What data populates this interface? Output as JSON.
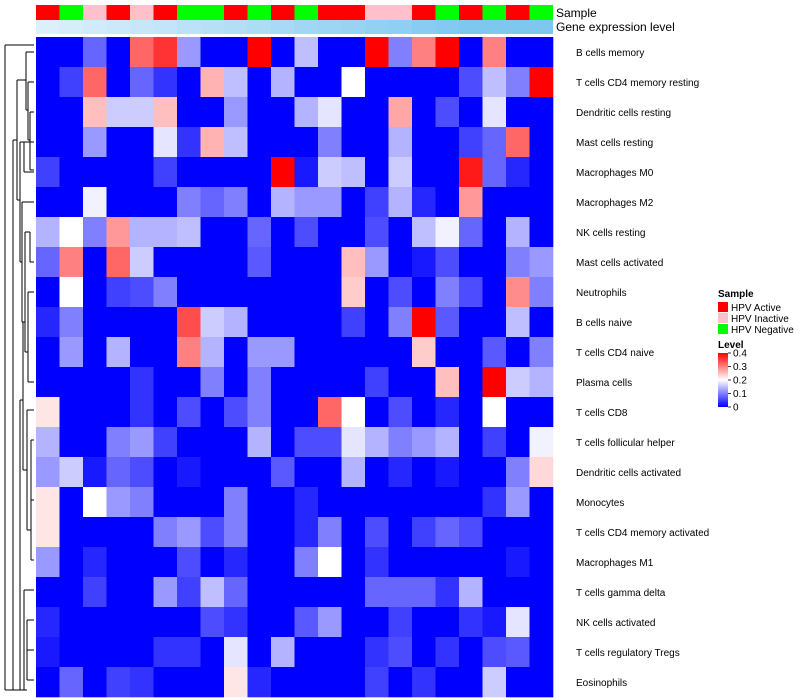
{
  "chart_data": {
    "type": "heatmap",
    "title": "",
    "annotation_rows": [
      "Sample",
      "Gene expression level"
    ],
    "sample_legend": {
      "title": "Sample",
      "entries": [
        {
          "label": "HPV Active",
          "color": "#ff0000"
        },
        {
          "label": "HPV Inactive",
          "color": "#ffc0cb"
        },
        {
          "label": "HPV Negative",
          "color": "#00ff00"
        }
      ]
    },
    "level_legend": {
      "title": "Level",
      "ticks": [
        "0.4",
        "0.3",
        "0.2",
        "0.1",
        "0"
      ],
      "tick_values": [
        0.4,
        0.3,
        0.2,
        0.1,
        0
      ],
      "range": [
        0,
        0.4
      ],
      "colors": {
        "low": "#0000ff",
        "mid": "#ffffff",
        "high": "#ff0000"
      }
    },
    "samples": [
      "HPV Active",
      "HPV Negative",
      "HPV Inactive",
      "HPV Active",
      "HPV Inactive",
      "HPV Active",
      "HPV Negative",
      "HPV Negative",
      "HPV Active",
      "HPV Negative",
      "HPV Active",
      "HPV Negative",
      "HPV Active",
      "HPV Active",
      "HPV Inactive",
      "HPV Inactive",
      "HPV Active",
      "HPV Negative",
      "HPV Active",
      "HPV Negative",
      "HPV Active",
      "HPV Negative"
    ],
    "gene_expression_level": [
      0.1,
      0.15,
      0.2,
      0.25,
      0.3,
      0.35,
      0.4,
      0.45,
      0.5,
      0.55,
      0.6,
      0.65,
      0.7,
      0.75,
      0.8,
      0.85,
      0.9,
      0.95,
      1.0,
      1.0,
      1.0,
      1.0
    ],
    "rows": [
      "B cells memory",
      "T cells CD4 memory resting",
      "Dendritic cells resting",
      "Mast cells resting",
      "Macrophages M0",
      "Macrophages M2",
      "NK cells resting",
      "Mast cells activated",
      "Neutrophils",
      "B cells naive",
      "T cells CD4 naive",
      "Plasma cells",
      "T cells CD8",
      "T cells follicular helper",
      "Dendritic cells activated",
      "Monocytes",
      "T cells CD4 memory activated",
      "Macrophages M1",
      "T cells gamma delta",
      "NK cells activated",
      "T cells regulatory  Tregs",
      "Eosinophils"
    ],
    "values": [
      [
        0.0,
        0.0,
        0.08,
        0.0,
        0.32,
        0.36,
        0.12,
        0.0,
        0.0,
        0.42,
        0.0,
        0.15,
        0.0,
        0.0,
        0.42,
        0.1,
        0.3,
        0.42,
        0.0,
        0.3,
        0.0,
        0.0
      ],
      [
        0.0,
        0.05,
        0.32,
        0.0,
        0.08,
        0.04,
        0.0,
        0.26,
        0.15,
        0.0,
        0.14,
        0.0,
        0.0,
        0.2,
        0.0,
        0.0,
        0.0,
        0.0,
        0.06,
        0.15,
        0.1,
        0.42
      ],
      [
        0.0,
        0.0,
        0.25,
        0.16,
        0.16,
        0.25,
        0.0,
        0.0,
        0.12,
        0.0,
        0.0,
        0.14,
        0.18,
        0.0,
        0.0,
        0.27,
        0.0,
        0.06,
        0.0,
        0.18,
        0.0,
        0.0
      ],
      [
        0.0,
        0.0,
        0.12,
        0.0,
        0.0,
        0.18,
        0.04,
        0.26,
        0.15,
        0.0,
        0.0,
        0.0,
        0.1,
        0.0,
        0.0,
        0.14,
        0.0,
        0.0,
        0.05,
        0.08,
        0.32,
        0.0
      ],
      [
        0.05,
        0.0,
        0.0,
        0.0,
        0.0,
        0.05,
        0.0,
        0.0,
        0.0,
        0.0,
        0.42,
        0.02,
        0.16,
        0.15,
        0.0,
        0.16,
        0.0,
        0.0,
        0.38,
        0.08,
        0.03,
        0.0
      ],
      [
        0.0,
        0.0,
        0.19,
        0.0,
        0.0,
        0.0,
        0.1,
        0.08,
        0.1,
        0.0,
        0.14,
        0.12,
        0.12,
        0.0,
        0.05,
        0.14,
        0.03,
        0.0,
        0.28,
        0.0,
        0.0,
        0.0
      ],
      [
        0.14,
        0.2,
        0.1,
        0.28,
        0.14,
        0.14,
        0.15,
        0.0,
        0.0,
        0.08,
        0.0,
        0.06,
        0.0,
        0.0,
        0.06,
        0.0,
        0.15,
        0.19,
        0.08,
        0.0,
        0.14,
        0.0
      ],
      [
        0.08,
        0.3,
        0.0,
        0.32,
        0.16,
        0.0,
        0.0,
        0.0,
        0.0,
        0.07,
        0.0,
        0.0,
        0.0,
        0.25,
        0.12,
        0.0,
        0.02,
        0.06,
        0.0,
        0.0,
        0.1,
        0.12
      ],
      [
        0.0,
        0.2,
        0.0,
        0.05,
        0.06,
        0.1,
        0.0,
        0.0,
        0.0,
        0.0,
        0.0,
        0.0,
        0.0,
        0.24,
        0.0,
        0.06,
        0.0,
        0.1,
        0.06,
        0.0,
        0.29,
        0.1
      ],
      [
        0.03,
        0.1,
        0.0,
        0.0,
        0.0,
        0.0,
        0.34,
        0.16,
        0.14,
        0.0,
        0.0,
        0.0,
        0.0,
        0.05,
        0.0,
        0.1,
        0.42,
        0.07,
        0.0,
        0.0,
        0.15,
        0.0
      ],
      [
        0.0,
        0.12,
        0.0,
        0.14,
        0.0,
        0.0,
        0.3,
        0.14,
        0.0,
        0.12,
        0.12,
        0.0,
        0.0,
        0.0,
        0.0,
        0.0,
        0.24,
        0.0,
        0.0,
        0.07,
        0.0,
        0.1
      ],
      [
        0.0,
        0.0,
        0.0,
        0.0,
        0.04,
        0.0,
        0.0,
        0.1,
        0.0,
        0.1,
        0.0,
        0.0,
        0.0,
        0.0,
        0.05,
        0.0,
        0.0,
        0.25,
        0.0,
        0.4,
        0.16,
        0.14
      ],
      [
        0.22,
        0.0,
        0.0,
        0.0,
        0.04,
        0.0,
        0.06,
        0.0,
        0.06,
        0.1,
        0.0,
        0.0,
        0.32,
        0.2,
        0.0,
        0.06,
        0.0,
        0.03,
        0.0,
        0.2,
        0.0,
        0.0
      ],
      [
        0.14,
        0.0,
        0.0,
        0.1,
        0.12,
        0.05,
        0.0,
        0.0,
        0.0,
        0.14,
        0.0,
        0.06,
        0.06,
        0.18,
        0.14,
        0.1,
        0.12,
        0.14,
        0.0,
        0.05,
        0.0,
        0.19
      ],
      [
        0.12,
        0.16,
        0.02,
        0.08,
        0.06,
        0.0,
        0.02,
        0.0,
        0.0,
        0.0,
        0.07,
        0.0,
        0.0,
        0.14,
        0.0,
        0.03,
        0.0,
        0.02,
        0.0,
        0.0,
        0.1,
        0.23
      ],
      [
        0.22,
        0.0,
        0.2,
        0.12,
        0.1,
        0.0,
        0.0,
        0.0,
        0.1,
        0.0,
        0.0,
        0.03,
        0.0,
        0.0,
        0.0,
        0.0,
        0.0,
        0.0,
        0.0,
        0.04,
        0.12,
        0.0
      ],
      [
        0.22,
        0.0,
        0.0,
        0.0,
        0.0,
        0.1,
        0.12,
        0.06,
        0.1,
        0.0,
        0.0,
        0.03,
        0.1,
        0.0,
        0.06,
        0.0,
        0.05,
        0.08,
        0.06,
        0.0,
        0.0,
        0.0
      ],
      [
        0.12,
        0.0,
        0.03,
        0.0,
        0.0,
        0.0,
        0.06,
        0.0,
        0.03,
        0.0,
        0.0,
        0.1,
        0.2,
        0.0,
        0.04,
        0.0,
        0.0,
        0.0,
        0.0,
        0.0,
        0.02,
        0.0
      ],
      [
        0.0,
        0.0,
        0.05,
        0.0,
        0.0,
        0.12,
        0.05,
        0.15,
        0.08,
        0.0,
        0.0,
        0.0,
        0.0,
        0.0,
        0.08,
        0.08,
        0.08,
        0.04,
        0.14,
        0.0,
        0.0,
        0.0
      ],
      [
        0.03,
        0.0,
        0.0,
        0.0,
        0.0,
        0.0,
        0.0,
        0.06,
        0.04,
        0.0,
        0.0,
        0.07,
        0.12,
        0.0,
        0.0,
        0.05,
        0.0,
        0.0,
        0.04,
        0.02,
        0.18,
        0.0
      ],
      [
        0.02,
        0.0,
        0.0,
        0.0,
        0.0,
        0.04,
        0.04,
        0.0,
        0.18,
        0.0,
        0.14,
        0.0,
        0.0,
        0.0,
        0.04,
        0.06,
        0.0,
        0.04,
        0.0,
        0.06,
        0.07,
        0.0
      ],
      [
        0.0,
        0.08,
        0.0,
        0.05,
        0.04,
        0.0,
        0.0,
        0.0,
        0.22,
        0.03,
        0.0,
        0.0,
        0.0,
        0.0,
        0.05,
        0.0,
        0.04,
        0.0,
        0.0,
        0.16,
        0.0,
        0.0
      ]
    ]
  }
}
